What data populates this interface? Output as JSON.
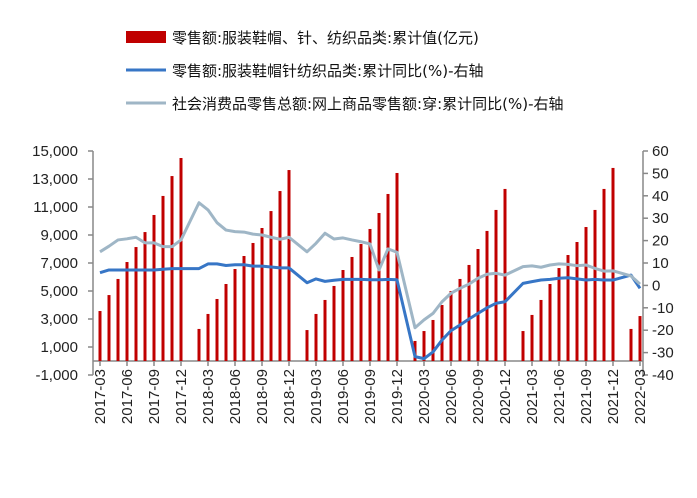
{
  "chart_data": {
    "type": "bar+line",
    "categories": [
      "2017-03",
      "2017-04",
      "2017-05",
      "2017-06",
      "2017-07",
      "2017-08",
      "2017-09",
      "2017-10",
      "2017-11",
      "2017-12",
      "2018-01",
      "2018-02",
      "2018-03",
      "2018-04",
      "2018-05",
      "2018-06",
      "2018-07",
      "2018-08",
      "2018-09",
      "2018-10",
      "2018-11",
      "2018-12",
      "2019-01",
      "2019-02",
      "2019-03",
      "2019-04",
      "2019-05",
      "2019-06",
      "2019-07",
      "2019-08",
      "2019-09",
      "2019-10",
      "2019-11",
      "2019-12",
      "2020-01",
      "2020-02",
      "2020-03",
      "2020-04",
      "2020-05",
      "2020-06",
      "2020-07",
      "2020-08",
      "2020-09",
      "2020-10",
      "2020-11",
      "2020-12",
      "2021-01",
      "2021-02",
      "2021-03",
      "2021-04",
      "2021-05",
      "2021-06",
      "2021-07",
      "2021-08",
      "2021-09",
      "2021-10",
      "2021-11",
      "2021-12",
      "2022-01",
      "2022-02",
      "2022-03"
    ],
    "x_tick_labels": [
      "2017-03",
      "2017-06",
      "2017-09",
      "2017-12",
      "2018-03",
      "2018-06",
      "2018-09",
      "2018-12",
      "2019-03",
      "2019-06",
      "2019-09",
      "2019-12",
      "2020-03",
      "2020-06",
      "2020-09",
      "2020-12",
      "2021-03",
      "2021-06",
      "2021-09",
      "2021-12",
      "2022-03"
    ],
    "series": [
      {
        "name": "零售额:服装鞋帽、针、纺织品类:累计值(亿元)",
        "type": "bar",
        "axis": "left",
        "color": "#c00000",
        "values": [
          3570,
          4710,
          5860,
          7070,
          8140,
          9210,
          10430,
          11790,
          13210,
          14500,
          null,
          2290,
          3360,
          4430,
          5500,
          6570,
          7500,
          8430,
          9500,
          10710,
          12140,
          13640,
          null,
          2210,
          3360,
          4360,
          5360,
          6500,
          7430,
          8360,
          9430,
          10570,
          11930,
          13430,
          null,
          1430,
          2140,
          2930,
          4000,
          5000,
          5860,
          6860,
          8000,
          9290,
          10790,
          12290,
          null,
          2140,
          3290,
          4360,
          5500,
          6640,
          7570,
          8500,
          9570,
          10790,
          12290,
          13790,
          null,
          2290,
          3210
        ]
      },
      {
        "name": "零售额:服装鞋帽针纺织品类:累计同比(%)-右轴",
        "type": "line",
        "axis": "right",
        "color": "#3776c6",
        "values": [
          5.7,
          6.9,
          6.9,
          6.9,
          6.9,
          6.9,
          6.9,
          7.2,
          7.5,
          7.5,
          null,
          7.5,
          9.6,
          9.6,
          8.9,
          9.2,
          9.2,
          8.6,
          8.6,
          8.2,
          7.8,
          7.8,
          null,
          1.2,
          2.9,
          1.8,
          2.3,
          2.7,
          2.7,
          2.7,
          2.5,
          2.5,
          2.7,
          2.5,
          null,
          -31.8,
          -32.7,
          -29.7,
          -24.4,
          -20.2,
          -17.7,
          -15,
          -12.5,
          -10,
          -8,
          -7.3,
          null,
          0.9,
          1.7,
          2.4,
          2.7,
          3.2,
          3.4,
          2.9,
          2.4,
          2.7,
          2.4,
          2.4,
          null,
          4.6,
          -1.3
        ]
      },
      {
        "name": "社会消费品零售总额:网上商品零售额:穿:累计同比(%)-右轴",
        "type": "line",
        "axis": "right",
        "color": "#9fb6c6",
        "values": [
          15,
          17.5,
          20.3,
          20.8,
          21.5,
          19,
          19,
          17.3,
          17.3,
          20.3,
          null,
          36.9,
          33.7,
          28,
          24.7,
          24,
          23.8,
          22.9,
          22.5,
          21.5,
          20.6,
          21.5,
          null,
          15,
          18.8,
          23.3,
          20.7,
          21.2,
          20.3,
          19.5,
          18.5,
          6.9,
          16.3,
          14.8,
          null,
          -18.9,
          -15.4,
          -12.5,
          -7.3,
          -3.5,
          -1.3,
          0.6,
          3.2,
          5,
          5.4,
          4.6,
          null,
          8.4,
          8.7,
          8.1,
          9.1,
          9.6,
          9.4,
          8.8,
          9.1,
          7.6,
          6.4,
          6.5,
          null,
          4.2,
          0.6
        ]
      }
    ],
    "left_axis": {
      "range": [
        -1000,
        15000
      ],
      "ticks": [
        "-1,000",
        "1,000",
        "3,000",
        "5,000",
        "7,000",
        "9,000",
        "11,000",
        "13,000",
        "15,000"
      ],
      "tick_values": [
        -1000,
        1000,
        3000,
        5000,
        7000,
        9000,
        11000,
        13000,
        15000
      ]
    },
    "right_axis": {
      "range": [
        -40,
        60
      ],
      "ticks": [
        "-40",
        "-30",
        "-20",
        "-10",
        "0",
        "10",
        "20",
        "30",
        "40",
        "50",
        "60"
      ],
      "tick_values": [
        -40,
        -30,
        -20,
        -10,
        0,
        10,
        20,
        30,
        40,
        50,
        60
      ]
    },
    "grid": false,
    "legend_position": "top"
  }
}
